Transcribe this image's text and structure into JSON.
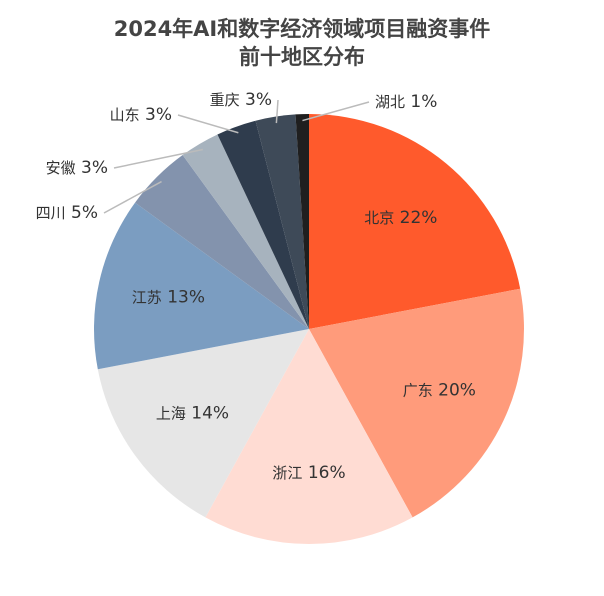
{
  "chart_data": {
    "type": "pie",
    "title": [
      "2024年AI和数字经济领域项目融资事件",
      "前十地区分布"
    ],
    "categories": [
      "北京",
      "广东",
      "浙江",
      "上海",
      "江苏",
      "四川",
      "安徽",
      "山东",
      "重庆",
      "湖北"
    ],
    "values": [
      22,
      20,
      16,
      14,
      13,
      5,
      3,
      3,
      3,
      1
    ],
    "value_labels": [
      "22%",
      "20%",
      "16%",
      "14%",
      "13%",
      "5%",
      "3%",
      "3%",
      "3%",
      "1%"
    ],
    "colors": [
      "#ff5a2c",
      "#ff9b7b",
      "#ffdcd3",
      "#e6e6e6",
      "#7b9dc1",
      "#8393ad",
      "#a7b3be",
      "#2f3c4d",
      "#3e4a58",
      "#1f1f1f"
    ]
  }
}
